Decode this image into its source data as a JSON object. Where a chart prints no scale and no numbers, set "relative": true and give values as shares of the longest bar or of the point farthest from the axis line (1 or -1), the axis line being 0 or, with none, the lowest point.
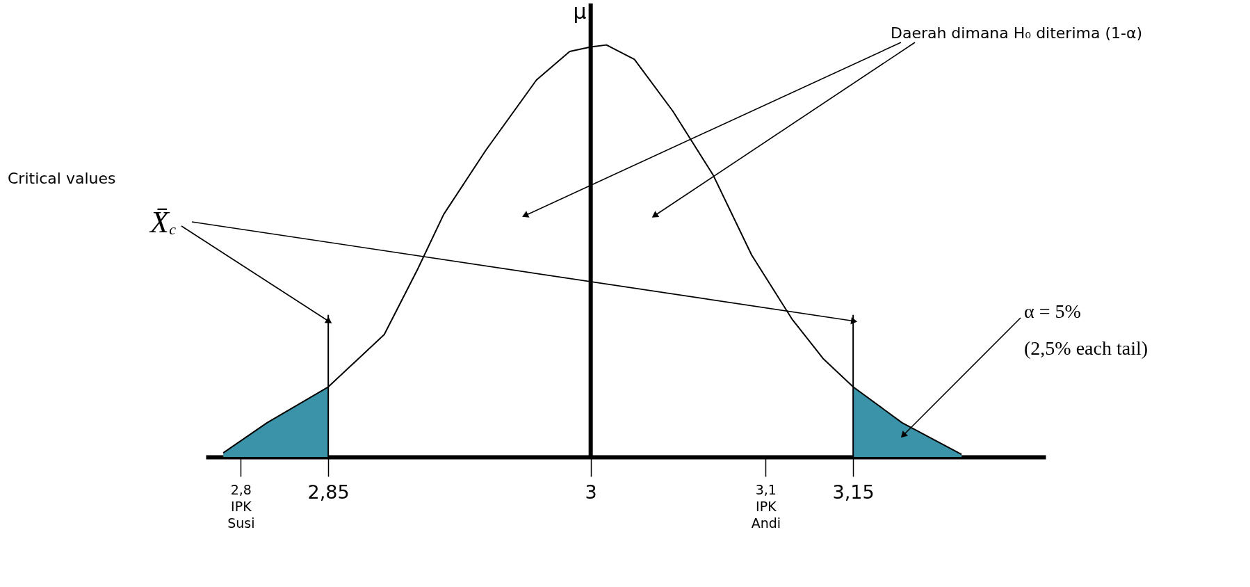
{
  "chart_data": {
    "type": "line",
    "relative": true,
    "grid": false,
    "xlim": [
      2.78,
      3.26
    ],
    "xticks": [
      {
        "value": 2.8,
        "label": "2,8\nIPK\nSusi"
      },
      {
        "value": 2.85,
        "label": "2,85"
      },
      {
        "value": 3,
        "label": "3"
      },
      {
        "value": 3.1,
        "label": "3,1\nIPK\nAndi"
      },
      {
        "value": 3.15,
        "label": "3,15"
      }
    ],
    "series": [
      {
        "color": "#000000",
        "x": [
          2.79,
          2.815,
          2.85,
          2.882,
          2.901,
          2.916,
          2.94,
          2.969,
          2.988,
          3.0,
          3.009,
          3.025,
          3.047,
          3.07,
          3.092,
          3.115,
          3.133,
          3.15,
          3.178,
          3.212
        ],
        "values": [
          0.01,
          0.083,
          0.17,
          0.297,
          0.455,
          0.589,
          0.744,
          0.915,
          0.984,
          0.995,
          1.0,
          0.965,
          0.839,
          0.684,
          0.49,
          0.335,
          0.238,
          0.17,
          0.083,
          0.006
        ]
      },
      {
        "type": "area",
        "color": "#3a93a8",
        "x": [
          2.79,
          2.815,
          2.85
        ],
        "values": [
          0.01,
          0.083,
          0.17
        ]
      },
      {
        "type": "area",
        "color": "#3a93a8",
        "x": [
          3.15,
          3.178,
          3.212
        ],
        "values": [
          0.17,
          0.083,
          0.006
        ]
      }
    ],
    "ref_lines": [
      {
        "axis": "x",
        "value": 3,
        "label": "μ",
        "color": "#000000"
      },
      {
        "axis": "x",
        "value": 2.85,
        "color": "#000000"
      },
      {
        "axis": "x",
        "value": 3.15,
        "color": "#000000"
      }
    ],
    "annotations": [
      "Critical values",
      {
        "text": "X̄$_{c}$",
        "x": 2.85,
        "y": 0.33
      },
      {
        "text": "Daerah dimana H₀ diterima (1-α)",
        "x": 2.963,
        "y": 0.587
      },
      {
        "text": "α = 5%",
        "x": 3.179,
        "y": 0.054
      },
      "(2,5% each tail)"
    ]
  }
}
